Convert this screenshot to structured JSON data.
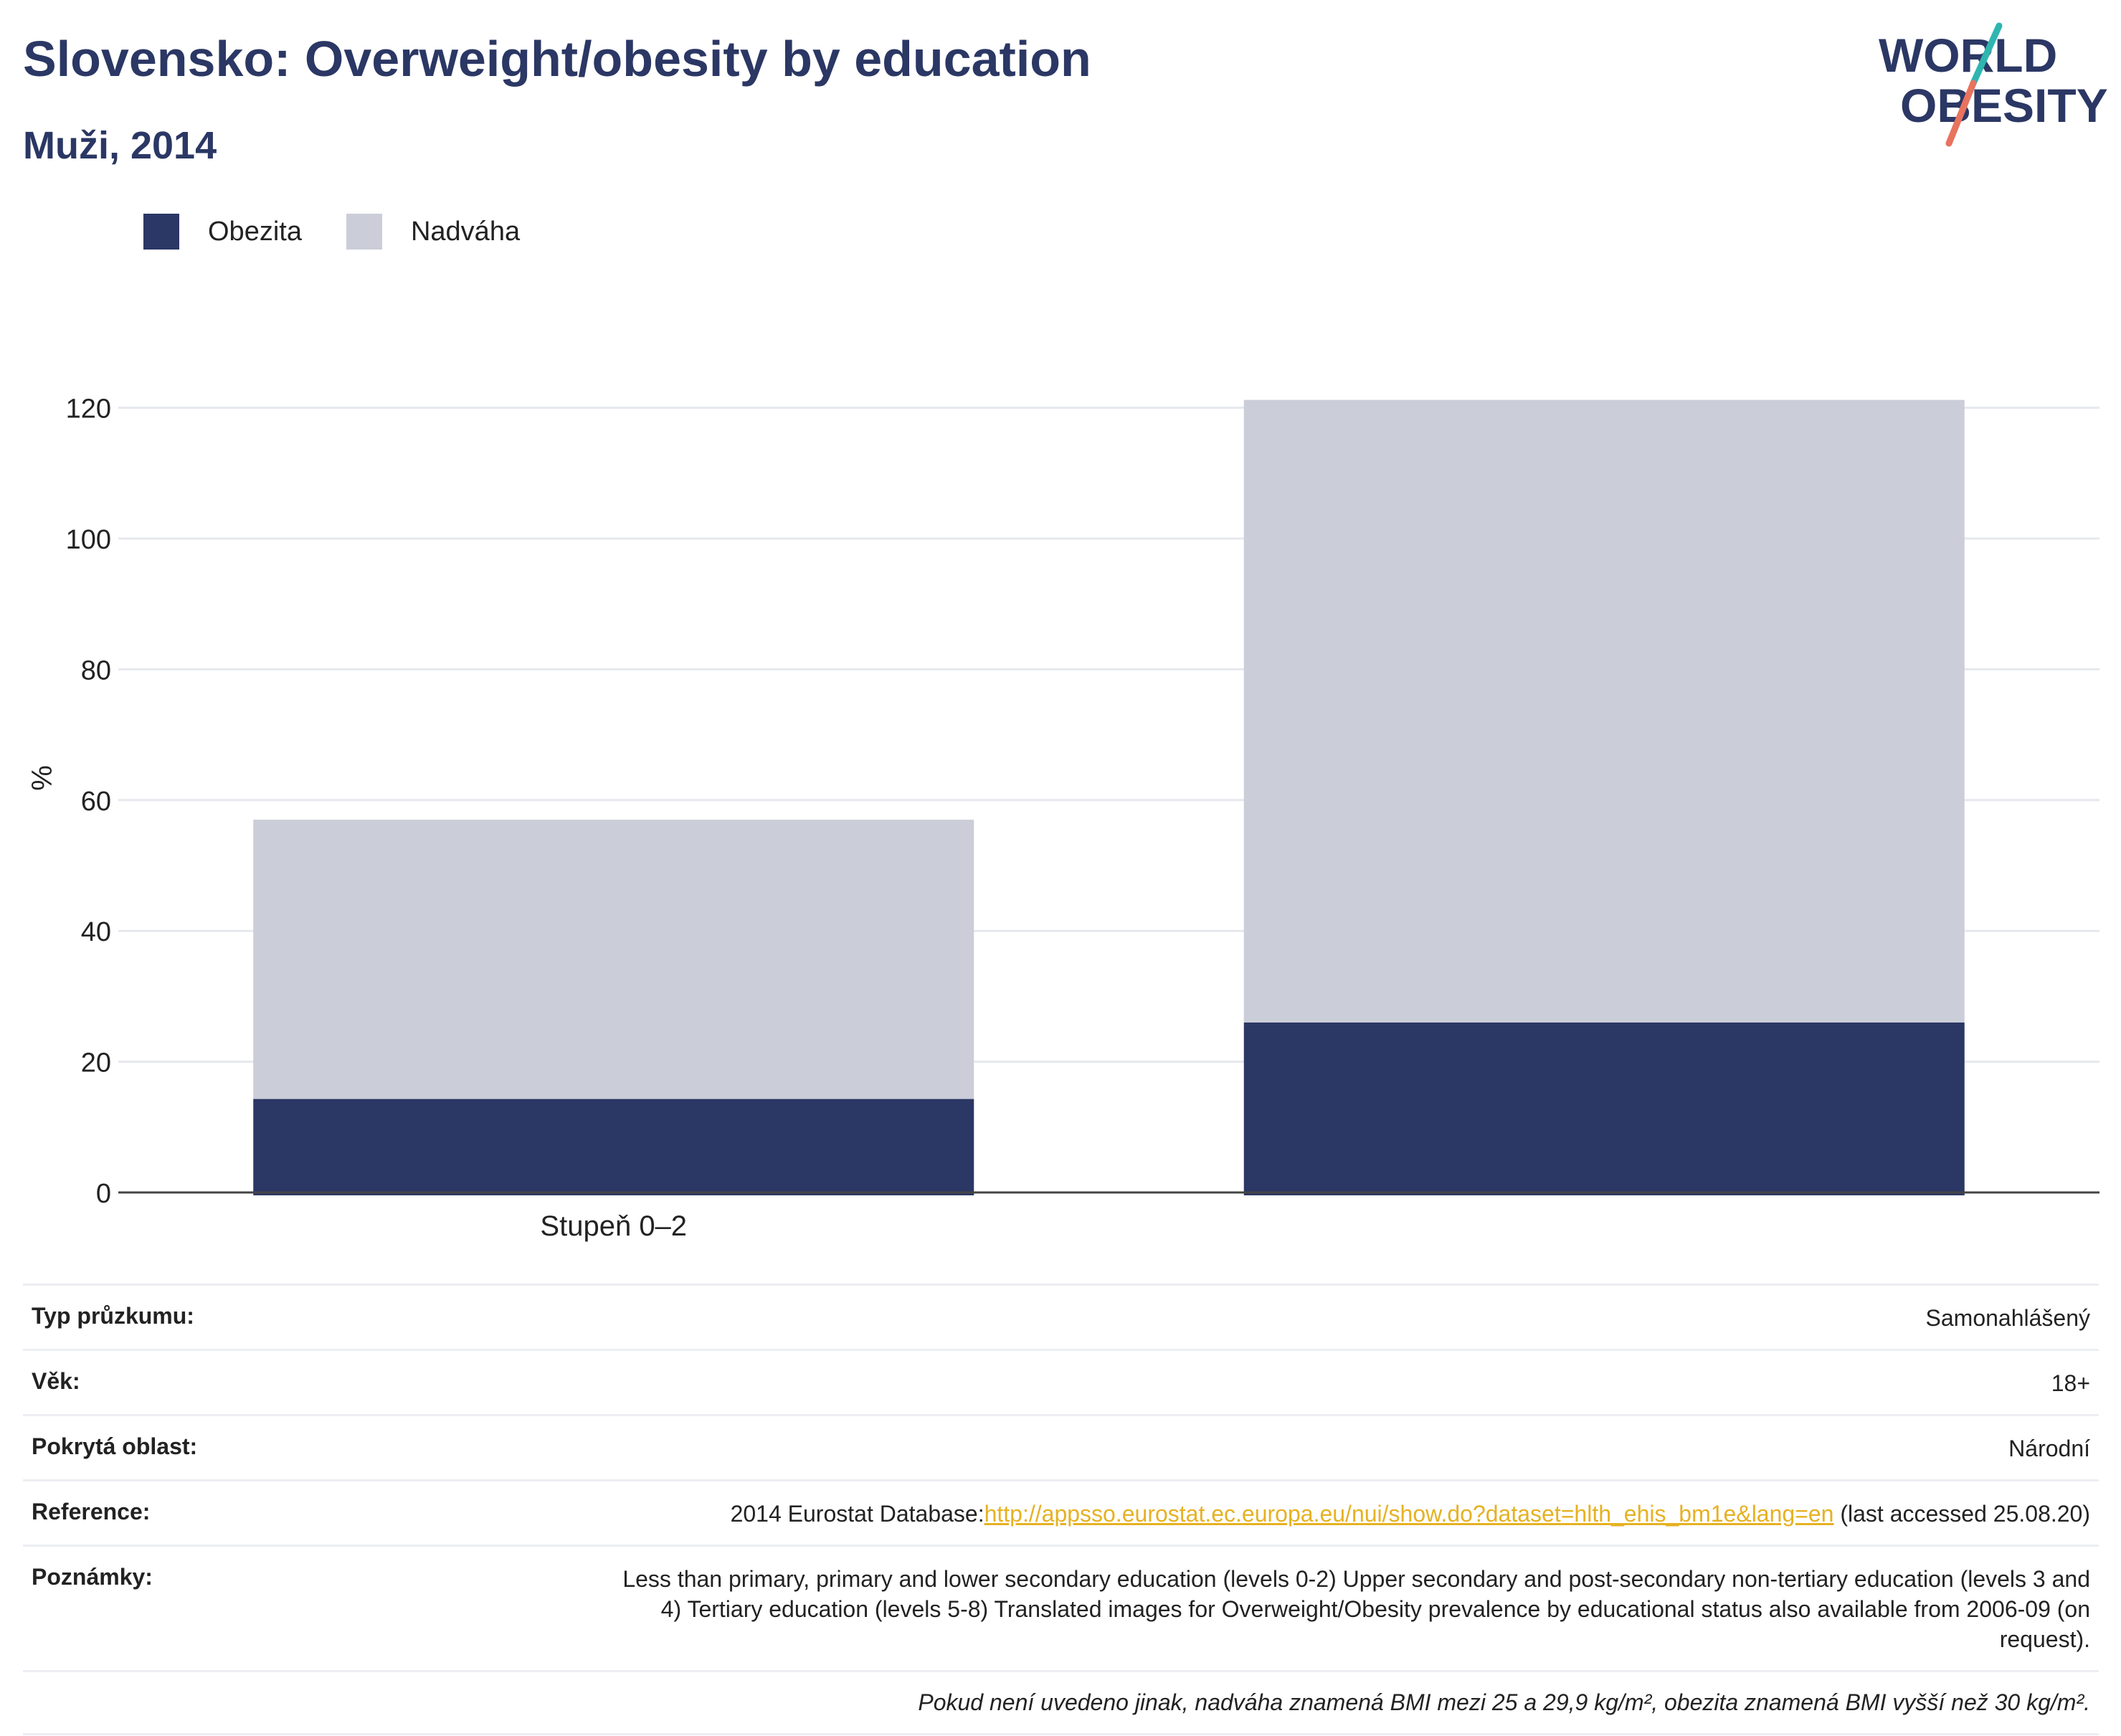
{
  "header": {
    "title": "Slovensko: Overweight/obesity by education",
    "subtitle": "Muži, 2014",
    "logo_line1": "WORLD",
    "logo_line2": "OBESITY"
  },
  "colors": {
    "obesity": "#2b3764",
    "overweight": "#cbcdd8",
    "title": "#2b3764",
    "link": "#e6b122",
    "logo_teal": "#2fb5b0",
    "logo_coral": "#e8735f"
  },
  "chart_data": {
    "type": "bar",
    "stacked": true,
    "categories": [
      "Stupeň 0–2",
      ""
    ],
    "series": [
      {
        "name": "Obezita",
        "values": [
          14.3,
          26.0
        ]
      },
      {
        "name": "Nadváha",
        "values": [
          42.7,
          95.2
        ]
      }
    ],
    "title": "",
    "xlabel": "",
    "ylabel": "%",
    "ylim": [
      0,
      125
    ],
    "yticks": [
      0,
      20,
      40,
      60,
      80,
      100,
      120
    ],
    "grid": true,
    "legend_position": "top-left"
  },
  "info": {
    "rows": [
      {
        "label": "Typ průzkumu:",
        "value": "Samonahlášený"
      },
      {
        "label": "Věk:",
        "value": "18+"
      },
      {
        "label": "Pokrytá oblast:",
        "value": "Národní"
      }
    ],
    "reference": {
      "label": "Reference:",
      "prefix": "2014 Eurostat Database:",
      "link": "http://appsso.eurostat.ec.europa.eu/nui/show.do?dataset=hlth_ehis_bm1e&lang=en",
      "suffix": " (last accessed 25.08.20)"
    },
    "notes": {
      "label": "Poznámky:",
      "value": "Less than primary, primary and lower secondary education (levels 0-2) Upper secondary and post-secondary non-tertiary education (levels 3 and 4) Tertiary education (levels 5-8) Translated images for Overweight/Obesity prevalence by educational status also available from 2006-09 (on request)."
    },
    "footnote": "Pokud není uvedeno jinak, nadváha znamená BMI mezi 25 a 29,9 kg/m², obezita znamená BMI vyšší než 30 kg/m²."
  }
}
